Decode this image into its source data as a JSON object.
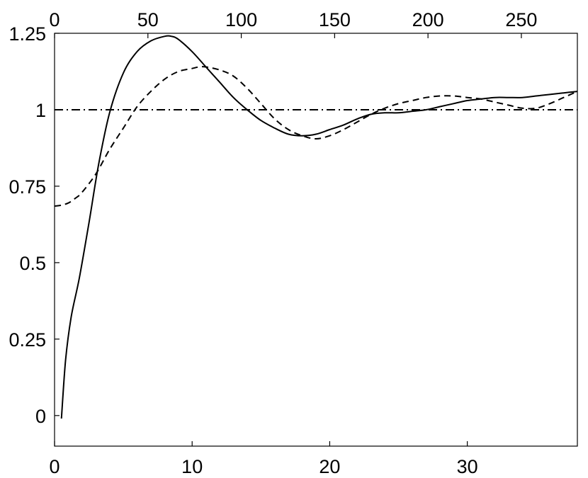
{
  "chart_data": {
    "type": "line",
    "title": "",
    "xlabel": "",
    "ylabel": "",
    "xlim": [
      0,
      38
    ],
    "ylim": [
      -0.1,
      1.25
    ],
    "x_top_lim": [
      0,
      280
    ],
    "grid": false,
    "legend": "none",
    "x_ticks": [
      0,
      10,
      20,
      30
    ],
    "x_tick_labels": [
      "0",
      "10",
      "20",
      "30"
    ],
    "x_top_ticks": [
      0,
      50,
      100,
      150,
      200,
      250
    ],
    "x_top_tick_labels": [
      "0",
      "50",
      "100",
      "150",
      "200",
      "250"
    ],
    "y_ticks": [
      0,
      0.25,
      0.5,
      0.75,
      1,
      1.25
    ],
    "y_tick_labels": [
      "0",
      "0.25",
      "0.5",
      "0.75",
      "1",
      "1.25"
    ],
    "series": [
      {
        "style": "solid",
        "x": [
          0.5,
          0.8,
          1.2,
          1.8,
          2.5,
          3.2,
          4.0,
          5.0,
          6.0,
          7.0,
          8.0,
          8.5,
          9.0,
          10.0,
          11.0,
          12.0,
          13.0,
          14.0,
          15.0,
          16.0,
          17.0,
          18.0,
          19.0,
          20.0,
          21.0,
          22.0,
          23.0,
          24.0,
          25.0,
          26.0,
          27.0,
          28.0,
          29.0,
          30.0,
          31.0,
          32.0,
          33.0,
          34.0,
          35.0,
          36.0,
          37.0,
          38.0
        ],
        "y": [
          -0.01,
          0.18,
          0.32,
          0.45,
          0.63,
          0.82,
          0.99,
          1.12,
          1.19,
          1.225,
          1.24,
          1.24,
          1.23,
          1.19,
          1.14,
          1.09,
          1.04,
          1.0,
          0.965,
          0.94,
          0.92,
          0.915,
          0.92,
          0.935,
          0.95,
          0.97,
          0.985,
          0.99,
          0.99,
          0.995,
          1.0,
          1.01,
          1.02,
          1.03,
          1.035,
          1.04,
          1.04,
          1.04,
          1.045,
          1.05,
          1.055,
          1.06
        ]
      },
      {
        "style": "dashed",
        "x": [
          0.0,
          0.5,
          1.0,
          1.5,
          2.0,
          3.0,
          4.0,
          5.0,
          6.0,
          7.0,
          8.0,
          9.0,
          10.0,
          10.5,
          11.0,
          12.0,
          13.0,
          14.0,
          15.0,
          16.0,
          17.0,
          18.0,
          19.0,
          20.0,
          21.0,
          22.0,
          23.0,
          24.0,
          25.0,
          26.0,
          27.0,
          28.0,
          29.0,
          30.0,
          31.0,
          32.0,
          33.0,
          34.0,
          35.0,
          36.0,
          37.0,
          38.0
        ],
        "y": [
          0.685,
          0.688,
          0.695,
          0.71,
          0.73,
          0.79,
          0.87,
          0.94,
          1.01,
          1.06,
          1.1,
          1.125,
          1.135,
          1.14,
          1.14,
          1.13,
          1.11,
          1.07,
          1.02,
          0.97,
          0.935,
          0.915,
          0.905,
          0.915,
          0.935,
          0.96,
          0.985,
          1.005,
          1.02,
          1.03,
          1.04,
          1.045,
          1.045,
          1.04,
          1.035,
          1.025,
          1.015,
          1.005,
          1.005,
          1.02,
          1.04,
          1.06
        ]
      },
      {
        "style": "dashdot",
        "x": [
          0,
          38
        ],
        "y": [
          1,
          1
        ]
      }
    ]
  }
}
